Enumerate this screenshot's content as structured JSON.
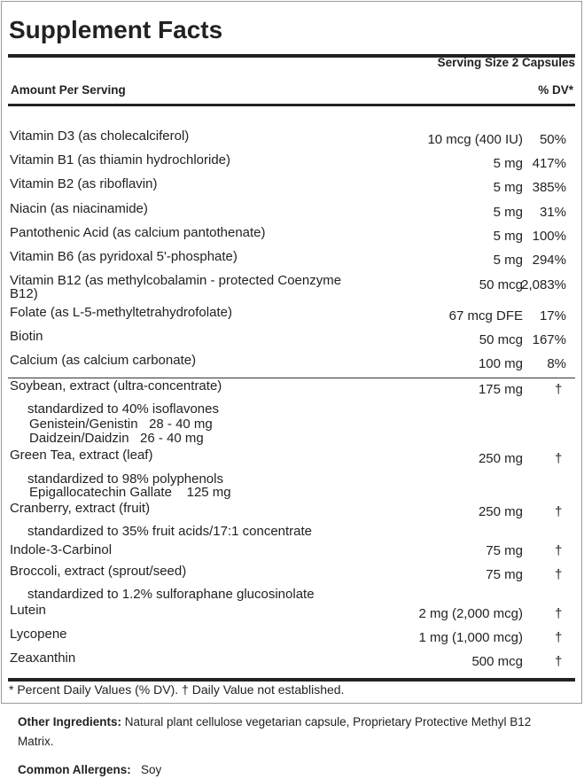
{
  "title": "Supplement Facts",
  "serving_size": "Serving Size 2 Capsules",
  "header": {
    "amount_per_serving": "Amount Per Serving",
    "dv": "% DV*"
  },
  "vitamins": [
    {
      "name": "Vitamin D3 (as cholecalciferol)",
      "amount": "10 mcg (400 IU)",
      "dv": "50%"
    },
    {
      "name": "Vitamin B1 (as thiamin hydrochloride)",
      "amount": "5 mg",
      "dv": "417%"
    },
    {
      "name": "Vitamin B2 (as riboflavin)",
      "amount": "5 mg",
      "dv": "385%"
    },
    {
      "name": "Niacin (as niacinamide)",
      "amount": "5 mg",
      "dv": "31%"
    },
    {
      "name": "Pantothenic Acid (as calcium pantothenate)",
      "amount": "5 mg",
      "dv": "100%"
    },
    {
      "name": "Vitamin B6 (as pyridoxal 5'-phosphate)",
      "amount": "5 mg",
      "dv": "294%"
    },
    {
      "name": "Vitamin B12 (as methylcobalamin - protected Coenzyme",
      "name2": "B12)",
      "amount": "50 mcg",
      "dv": "2,083%"
    },
    {
      "name": "Folate (as L-5-methyltetrahydrofolate)",
      "amount": "67 mcg DFE",
      "dv": "17%"
    },
    {
      "name": "Biotin",
      "amount": "50 mcg",
      "dv": "167%"
    },
    {
      "name": "Calcium (as calcium carbonate)",
      "amount": "100 mg",
      "dv": "8%"
    }
  ],
  "others": [
    {
      "name": "Soybean, extract (ultra-concentrate)",
      "amount": "175 mg",
      "dv": "†",
      "sub": [
        "standardized to 40% isoflavones",
        "Genistein/Genistin   28 - 40 mg",
        "Daidzein/Daidzin   26 - 40 mg"
      ]
    },
    {
      "name": "Green Tea, extract (leaf)",
      "amount": "250 mg",
      "dv": "†",
      "sub": [
        "standardized to 98% polyphenols",
        "Epigallocatechin Gallate    125 mg"
      ]
    },
    {
      "name": "Cranberry, extract (fruit)",
      "amount": "250 mg",
      "dv": "†",
      "sub": [
        "standardized to 35% fruit acids/17:1 concentrate"
      ]
    },
    {
      "name": "Indole-3-Carbinol",
      "amount": "75 mg",
      "dv": "†"
    },
    {
      "name": "Broccoli, extract (sprout/seed)",
      "amount": "75 mg",
      "dv": "†",
      "sub": [
        "standardized to 1.2% sulforaphane glucosinolate"
      ]
    },
    {
      "name": "Lutein",
      "amount": "2 mg (2,000 mcg)",
      "dv": "†"
    },
    {
      "name": "Lycopene",
      "amount": "1 mg (1,000 mcg)",
      "dv": "†"
    },
    {
      "name": "Zeaxanthin",
      "amount": "500 mcg",
      "dv": "†"
    }
  ],
  "footnote": "* Percent Daily Values (% DV). † Daily Value not established.",
  "other_ingredients": {
    "label": "Other Ingredients:",
    "text": "Natural plant cellulose vegetarian capsule, Proprietary Protective Methyl B12 Matrix."
  },
  "allergens": {
    "label": "Common Allergens:",
    "text": "Soy"
  }
}
